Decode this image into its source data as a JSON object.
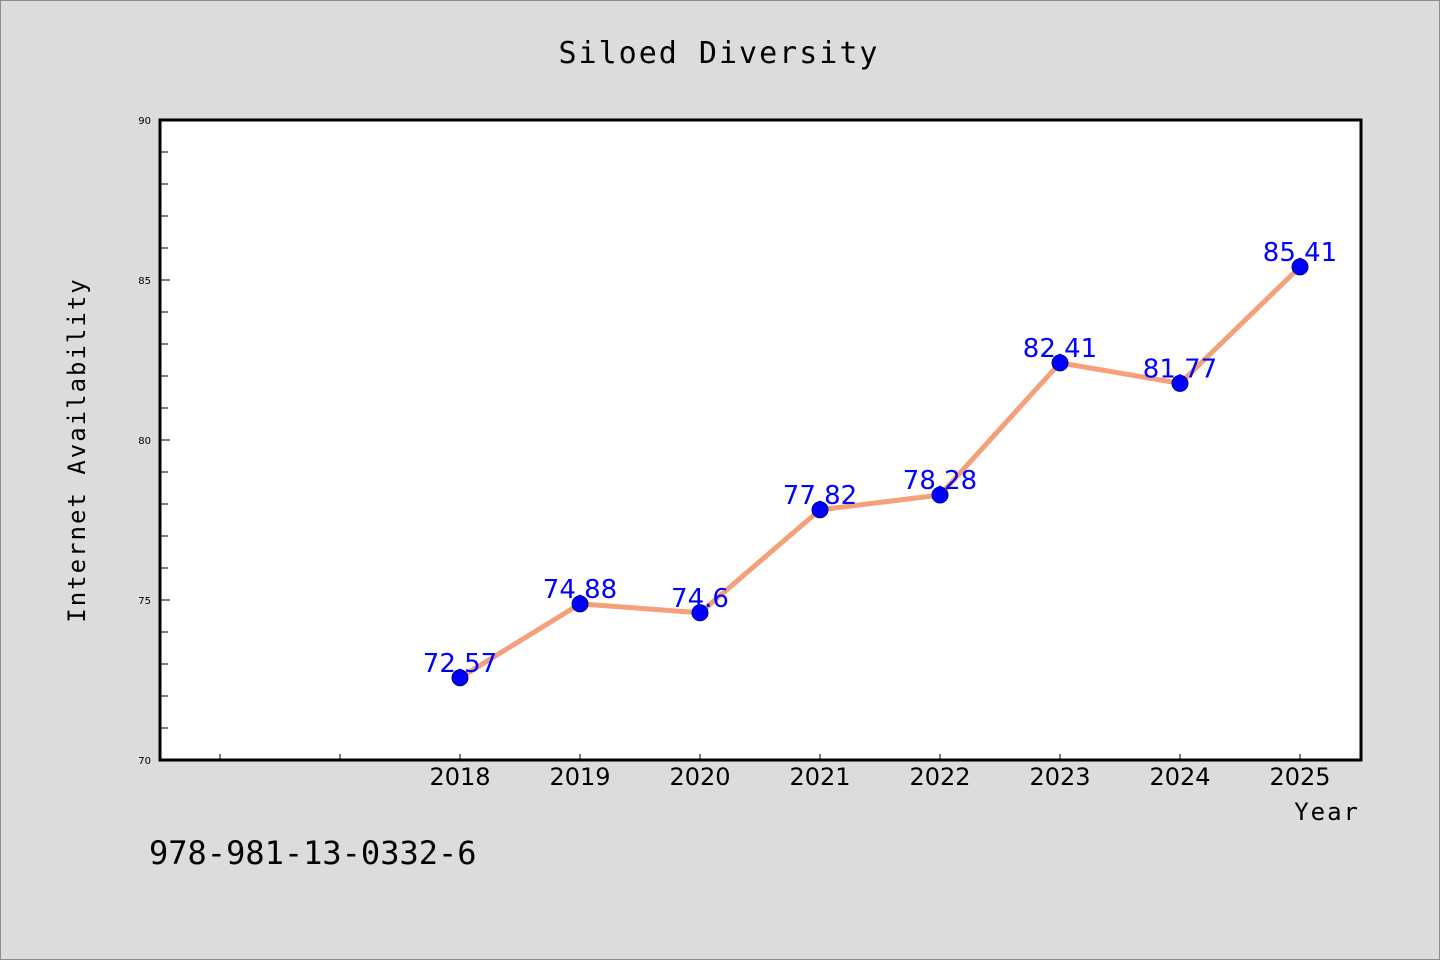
{
  "chart_data": {
    "type": "line",
    "title": "Siloed Diversity",
    "xlabel": "Year",
    "ylabel": "Internet Availability",
    "categories": [
      "2018",
      "2019",
      "2020",
      "2021",
      "2022",
      "2023",
      "2024",
      "2025"
    ],
    "series": [
      {
        "values": [
          72.57,
          74.88,
          74.6,
          77.82,
          78.28,
          82.41,
          81.77,
          85.41
        ]
      }
    ],
    "data_labels": [
      "72.57",
      "74.88",
      "74.6",
      "77.82",
      "78.28",
      "82.41",
      "81.77",
      "85.41"
    ],
    "ylim": [
      70,
      90
    ],
    "y_ticks": [
      "70",
      "75",
      "80",
      "85",
      "90"
    ],
    "grid": false,
    "colors": {
      "line": "#f4a07a",
      "marker": "#0000ff",
      "label": "#0000ff",
      "background": "#dcdcdc",
      "plot_bg": "#ffffff"
    }
  },
  "footer": {
    "isbn": "978-981-13-0332-6"
  }
}
